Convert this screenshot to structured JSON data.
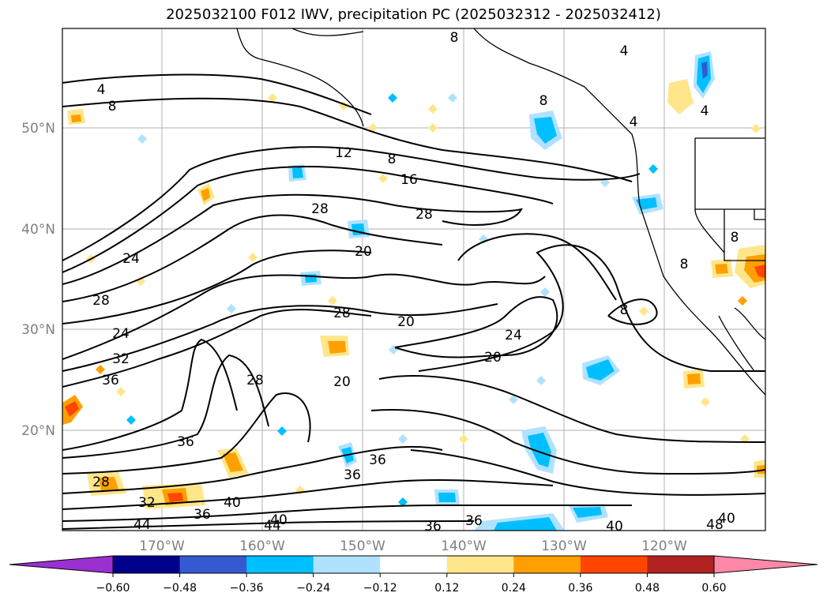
{
  "title": "2025032100 F012 IWV, precipitation PC (2025032312 - 2025032412)",
  "lat_ticks": [
    "50°N",
    "40°N",
    "30°N",
    "20°N"
  ],
  "lon_ticks": [
    "170°W",
    "160°W",
    "150°W",
    "140°W",
    "130°W",
    "120°W"
  ],
  "colorbar": {
    "tick_labels": [
      "−0.60",
      "−0.48",
      "−0.36",
      "−0.24",
      "−0.12",
      "0.12",
      "0.24",
      "0.36",
      "0.48",
      "0.60"
    ],
    "under_color": "#9b30d0",
    "over_color": "#ff88a8",
    "colors": [
      "#00008b",
      "#3459d0",
      "#00bfff",
      "#b0e2ff",
      "#ffffff",
      "#ffe68a",
      "#ffa000",
      "#ff4500",
      "#b22222"
    ]
  },
  "contour_labels": [
    "4",
    "8",
    "8",
    "12",
    "8",
    "16",
    "28",
    "28",
    "20",
    "24",
    "28",
    "28",
    "20",
    "24",
    "20",
    "24",
    "32",
    "36",
    "28",
    "20",
    "8",
    "8",
    "4",
    "4",
    "4",
    "8",
    "36",
    "36",
    "36",
    "28",
    "32",
    "40",
    "36",
    "44",
    "40",
    "44",
    "36",
    "36",
    "40",
    "40",
    "48",
    "8"
  ]
}
